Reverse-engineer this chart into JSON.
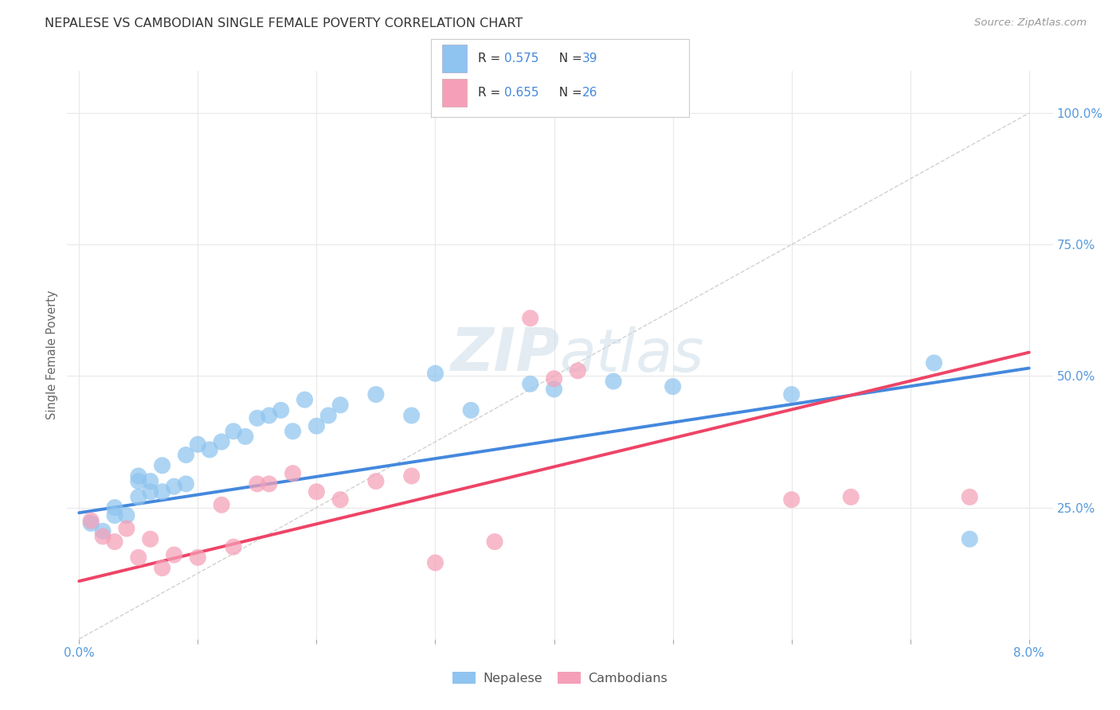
{
  "title": "NEPALESE VS CAMBODIAN SINGLE FEMALE POVERTY CORRELATION CHART",
  "source": "Source: ZipAtlas.com",
  "ylabel": "Single Female Poverty",
  "legend_r1": "R = 0.575",
  "legend_n1": "N = 39",
  "legend_r2": "R = 0.655",
  "legend_n2": "N = 26",
  "nepalese_color": "#8ec4ef",
  "cambodian_color": "#f5a0b8",
  "blue_line_color": "#4488dd",
  "pink_line_color": "#ee4466",
  "diag_color": "#cccccc",
  "watermark_color": "#ccdde8",
  "background_color": "#ffffff",
  "grid_color": "#e8e8e8",
  "title_color": "#333333",
  "source_color": "#999999",
  "axis_tick_color": "#5599dd",
  "ylabel_color": "#666666",
  "legend_text_color": "#333333",
  "legend_value_color": "#4488dd",
  "nepalese_x": [
    0.001,
    0.002,
    0.003,
    0.003,
    0.004,
    0.005,
    0.005,
    0.005,
    0.006,
    0.006,
    0.007,
    0.007,
    0.008,
    0.009,
    0.009,
    0.01,
    0.011,
    0.012,
    0.013,
    0.014,
    0.015,
    0.016,
    0.017,
    0.018,
    0.019,
    0.02,
    0.021,
    0.022,
    0.025,
    0.028,
    0.03,
    0.033,
    0.038,
    0.04,
    0.045,
    0.05,
    0.06,
    0.072,
    0.075
  ],
  "nepalese_y": [
    0.22,
    0.205,
    0.235,
    0.25,
    0.235,
    0.27,
    0.3,
    0.31,
    0.28,
    0.3,
    0.33,
    0.28,
    0.29,
    0.295,
    0.35,
    0.37,
    0.36,
    0.375,
    0.395,
    0.385,
    0.42,
    0.425,
    0.435,
    0.395,
    0.455,
    0.405,
    0.425,
    0.445,
    0.465,
    0.425,
    0.505,
    0.435,
    0.485,
    0.475,
    0.49,
    0.48,
    0.465,
    0.525,
    0.19
  ],
  "cambodian_x": [
    0.001,
    0.002,
    0.003,
    0.004,
    0.005,
    0.006,
    0.007,
    0.008,
    0.01,
    0.012,
    0.013,
    0.015,
    0.016,
    0.018,
    0.02,
    0.022,
    0.025,
    0.028,
    0.03,
    0.035,
    0.038,
    0.04,
    0.042,
    0.06,
    0.065,
    0.075
  ],
  "cambodian_y": [
    0.225,
    0.195,
    0.185,
    0.21,
    0.155,
    0.19,
    0.135,
    0.16,
    0.155,
    0.255,
    0.175,
    0.295,
    0.295,
    0.315,
    0.28,
    0.265,
    0.3,
    0.31,
    0.145,
    0.185,
    0.61,
    0.495,
    0.51,
    0.265,
    0.27,
    0.27
  ],
  "blue_line_x": [
    0.0,
    0.08
  ],
  "blue_line_y": [
    0.24,
    0.515
  ],
  "pink_line_x": [
    0.0,
    0.08
  ],
  "pink_line_y": [
    0.11,
    0.545
  ],
  "diag_line_x": [
    0.0,
    0.08
  ],
  "diag_line_y": [
    0.0,
    1.0
  ],
  "xlim": [
    -0.001,
    0.082
  ],
  "ylim": [
    0.0,
    1.08
  ],
  "xtick_left_label": "0.0%",
  "xtick_right_label": "8.0%",
  "ytick_values": [
    0.25,
    0.5,
    0.75,
    1.0
  ],
  "ytick_labels": [
    "25.0%",
    "50.0%",
    "75.0%",
    "100.0%"
  ],
  "bottom_legend_labels": [
    "Nepalese",
    "Cambodians"
  ]
}
